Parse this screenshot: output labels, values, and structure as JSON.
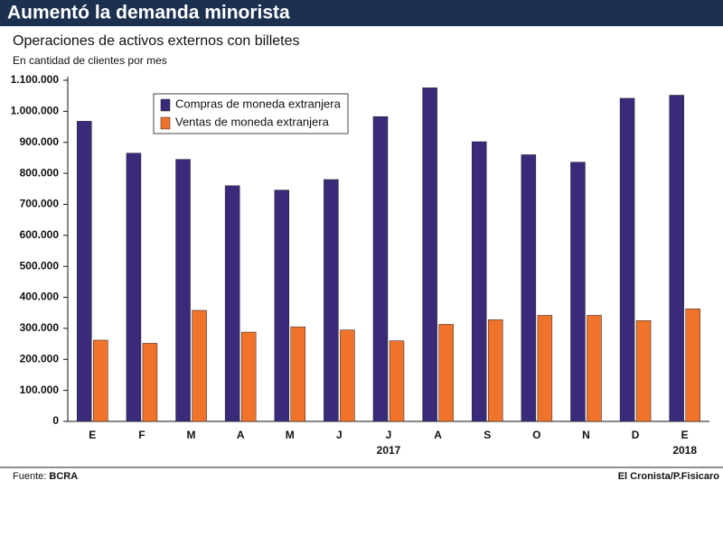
{
  "chart_data": {
    "type": "bar",
    "title": "Aumentó la demanda minorista",
    "subtitle": "Operaciones de activos externos con billetes",
    "y_label": "En cantidad de clientes por mes",
    "categories": [
      "E",
      "F",
      "M",
      "A",
      "M",
      "J",
      "J",
      "A",
      "S",
      "O",
      "N",
      "D",
      "E"
    ],
    "years": [
      null,
      null,
      null,
      null,
      null,
      null,
      "2017",
      null,
      null,
      null,
      null,
      null,
      "2018"
    ],
    "series": [
      {
        "name": "Compras de moneda extranjera",
        "color": "#3b2a7a",
        "values": [
          968000,
          865000,
          845000,
          760000,
          746000,
          780000,
          983000,
          1076000,
          902000,
          860000,
          836000,
          1042000,
          1052000
        ]
      },
      {
        "name": "Ventas de moneda extranjera",
        "color": "#f0732b",
        "values": [
          262000,
          252000,
          358000,
          288000,
          305000,
          295000,
          260000,
          313000,
          328000,
          342000,
          342000,
          325000,
          363000
        ]
      }
    ],
    "ylim": [
      0,
      1100000
    ],
    "yticks": [
      0,
      {
        "value": 100000,
        "label": "100.000"
      },
      {
        "value": 200000,
        "label": "200.000"
      },
      {
        "value": 300000,
        "label": "300.000"
      },
      {
        "value": 400000,
        "label": "400.000"
      },
      {
        "value": 500000,
        "label": "500.000"
      },
      {
        "value": 600000,
        "label": "600.000"
      },
      {
        "value": 700000,
        "label": "700.000"
      },
      {
        "value": 800000,
        "label": "800.000"
      },
      {
        "value": 900000,
        "label": "900.000"
      },
      {
        "value": 1000000,
        "label": "1.000.000"
      },
      {
        "value": 1100000,
        "label": "1.100.000"
      }
    ],
    "grid": false,
    "legend": "top-left",
    "source_label": "Fuente:",
    "source": "BCRA",
    "credit": "El Cronista/P.Fisicaro"
  }
}
